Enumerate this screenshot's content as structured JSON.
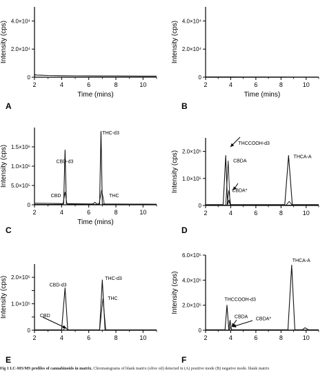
{
  "caption": {
    "label": "Fig 1",
    "bold": "LC-MS/MS profiles of cannabinoids in matrix.",
    "text": "Chromatograms of blank matrix (olive oil) detected in (A) positive mode (B) negative mode. blank matrix"
  },
  "chart_data": [
    {
      "type": "line",
      "panel_letter": "A",
      "xlabel": "Time (mins)",
      "ylabel": "Intensity (cps)",
      "xlim": [
        2,
        11
      ],
      "ylim": [
        0,
        50000
      ],
      "xticks": [
        2,
        4,
        6,
        8,
        10
      ],
      "yticks": [
        0,
        20000,
        40000
      ],
      "ytick_labels": [
        "0",
        "2.0×10⁴",
        "4.0×10⁴"
      ],
      "grid": false,
      "series": [
        {
          "values": [
            [
              2.0,
              0
            ],
            [
              2.02,
              2200
            ],
            [
              2.06,
              1600
            ],
            [
              2.2,
              1500
            ],
            [
              2.6,
              1350
            ],
            [
              3.0,
              1250
            ],
            [
              4.0,
              1100
            ],
            [
              5.0,
              1000
            ],
            [
              6.0,
              950
            ],
            [
              7.0,
              900
            ],
            [
              8.0,
              860
            ],
            [
              9.0,
              820
            ],
            [
              10.0,
              780
            ],
            [
              11.0,
              760
            ]
          ]
        }
      ],
      "annotations": []
    },
    {
      "type": "line",
      "panel_letter": "B",
      "xlabel": "Time (mins)",
      "ylabel": "Intensity (cps)",
      "xlim": [
        2,
        11
      ],
      "ylim": [
        0,
        50000
      ],
      "xticks": [
        2,
        4,
        6,
        8,
        10
      ],
      "yticks": [
        0,
        20000,
        40000
      ],
      "ytick_labels": [
        "0",
        "2.0×10⁴",
        "4.0×10⁴"
      ],
      "grid": false,
      "series": [
        {
          "values": [
            [
              2.0,
              0
            ],
            [
              2.05,
              250
            ],
            [
              3.0,
              200
            ],
            [
              4.0,
              180
            ],
            [
              5.0,
              160
            ],
            [
              6.0,
              150
            ],
            [
              7.0,
              140
            ],
            [
              8.0,
              130
            ],
            [
              9.0,
              120
            ],
            [
              10.0,
              110
            ],
            [
              11.0,
              100
            ]
          ]
        }
      ],
      "annotations": []
    },
    {
      "type": "line",
      "panel_letter": "C",
      "xlabel": "Time (mins)",
      "ylabel": "Intensity (cps)",
      "xlim": [
        2,
        11
      ],
      "ylim": [
        0,
        2000000
      ],
      "xticks": [
        2,
        4,
        6,
        8,
        10
      ],
      "yticks": [
        0,
        500000,
        1000000,
        1500000
      ],
      "ytick_labels": [
        "0",
        "5.0×10⁵",
        "1.0×10⁶",
        "1.5×10⁶"
      ],
      "grid": false,
      "series": [
        {
          "values": [
            [
              2.0,
              40000
            ],
            [
              3.0,
              35000
            ],
            [
              4.0,
              30000
            ],
            [
              4.15,
              30000
            ],
            [
              4.25,
              1420000
            ],
            [
              4.35,
              30000
            ],
            [
              5.0,
              25000
            ],
            [
              6.3,
              22000
            ],
            [
              6.45,
              60000
            ],
            [
              6.6,
              22000
            ],
            [
              6.8,
              22000
            ],
            [
              6.9,
              1900000
            ],
            [
              7.0,
              22000
            ],
            [
              8.0,
              20000
            ],
            [
              9.0,
              18000
            ],
            [
              10.0,
              17000
            ],
            [
              11.0,
              15000
            ]
          ]
        },
        {
          "values": [
            [
              2.0,
              10000
            ],
            [
              4.1,
              10000
            ],
            [
              4.25,
              330000
            ],
            [
              4.4,
              10000
            ],
            [
              6.75,
              10000
            ],
            [
              6.95,
              380000
            ],
            [
              7.15,
              10000
            ],
            [
              11.0,
              8000
            ]
          ]
        }
      ],
      "annotations": [
        {
          "text": "CBD-d3",
          "x": 3.6,
          "y": 1080000
        },
        {
          "text": "CBD",
          "x": 3.2,
          "y": 200000
        },
        {
          "text": "THC-d3",
          "x": 7.0,
          "y": 1820000
        },
        {
          "text": "THC",
          "x": 7.5,
          "y": 200000
        }
      ]
    },
    {
      "type": "line",
      "panel_letter": "D",
      "xlabel": "",
      "ylabel": "Intensity (cps)",
      "xlim": [
        2,
        11
      ],
      "ylim": [
        0,
        250000
      ],
      "xticks": [
        2,
        4,
        6,
        8,
        10
      ],
      "yticks": [
        0,
        100000,
        200000
      ],
      "ytick_labels": [
        "0",
        "1.0×10⁵",
        "2.0×10⁵"
      ],
      "grid": false,
      "series": [
        {
          "values": [
            [
              2.0,
              3000
            ],
            [
              3.4,
              3000
            ],
            [
              3.6,
              185000
            ],
            [
              3.75,
              3000
            ],
            [
              3.85,
              20000
            ],
            [
              3.95,
              3000
            ],
            [
              5.0,
              3000
            ],
            [
              8.3,
              3000
            ],
            [
              8.6,
              185000
            ],
            [
              8.9,
              3000
            ],
            [
              11.0,
              3000
            ]
          ]
        },
        {
          "values": [
            [
              2.0,
              1500
            ],
            [
              3.6,
              1500
            ],
            [
              3.8,
              165000
            ],
            [
              3.95,
              1500
            ],
            [
              11.0,
              1500
            ]
          ]
        },
        {
          "values": [
            [
              2.0,
              1000
            ],
            [
              3.7,
              1000
            ],
            [
              3.85,
              55000
            ],
            [
              4.0,
              1000
            ],
            [
              11.0,
              1000
            ]
          ]
        },
        {
          "values": [
            [
              2.0,
              800
            ],
            [
              8.4,
              800
            ],
            [
              8.65,
              15000
            ],
            [
              8.9,
              800
            ],
            [
              11.0,
              800
            ]
          ]
        }
      ],
      "annotations": [
        {
          "text": "THCCOOH-d3",
          "x": 4.6,
          "y": 225000
        },
        {
          "text": "CBDA",
          "x": 4.2,
          "y": 160000
        },
        {
          "text": "CBDA*",
          "x": 4.1,
          "y": 50000
        },
        {
          "text": "THCA-A",
          "x": 9.0,
          "y": 175000
        }
      ]
    },
    {
      "type": "line",
      "panel_letter": "E",
      "xlabel": "",
      "ylabel": "Intensity (cps)",
      "xlim": [
        2,
        11
      ],
      "ylim": [
        0,
        250000
      ],
      "xticks": [
        2,
        4,
        6,
        8,
        10
      ],
      "yticks": [
        0,
        50000,
        100000,
        150000,
        200000
      ],
      "ytick_labels": [
        "0",
        "",
        "1.0×10⁵",
        "",
        "2.0×10⁵"
      ],
      "grid": false,
      "series": [
        {
          "values": [
            [
              2.0,
              1500
            ],
            [
              4.0,
              1500
            ],
            [
              4.25,
              160000
            ],
            [
              4.45,
              1500
            ],
            [
              6.8,
              1500
            ],
            [
              7.0,
              190000
            ],
            [
              7.2,
              1500
            ],
            [
              11.0,
              1500
            ]
          ]
        },
        {
          "values": [
            [
              2.0,
              700
            ],
            [
              4.1,
              700
            ],
            [
              4.3,
              10000
            ],
            [
              4.45,
              700
            ],
            [
              6.8,
              700
            ],
            [
              7.05,
              120000
            ],
            [
              7.25,
              700
            ],
            [
              11.0,
              700
            ]
          ]
        }
      ],
      "annotations": [
        {
          "text": "CBD-d3",
          "x": 3.1,
          "y": 165000
        },
        {
          "text": "CBD",
          "x": 2.4,
          "y": 50000
        },
        {
          "text": "THC-d3",
          "x": 7.2,
          "y": 190000
        },
        {
          "text": "THC",
          "x": 7.4,
          "y": 115000
        }
      ]
    },
    {
      "type": "line",
      "panel_letter": "F",
      "xlabel": "",
      "ylabel": "Intensity (cps)",
      "xlim": [
        2,
        11
      ],
      "ylim": [
        0,
        600000
      ],
      "xticks": [
        2,
        4,
        6,
        8,
        10
      ],
      "yticks": [
        0,
        200000,
        400000,
        600000
      ],
      "ytick_labels": [
        "0",
        "2.0×10⁵",
        "4.0×10⁵",
        "6.0×10⁵"
      ],
      "grid": false,
      "series": [
        {
          "values": [
            [
              2.0,
              4000
            ],
            [
              3.55,
              4000
            ],
            [
              3.7,
              200000
            ],
            [
              3.85,
              4000
            ],
            [
              3.95,
              80000
            ],
            [
              4.05,
              4000
            ],
            [
              5.5,
              4000
            ],
            [
              8.55,
              4000
            ],
            [
              8.85,
              520000
            ],
            [
              9.1,
              4000
            ],
            [
              9.7,
              4000
            ],
            [
              9.9,
              20000
            ],
            [
              10.2,
              4000
            ],
            [
              11.0,
              4000
            ]
          ]
        },
        {
          "values": [
            [
              2.0,
              2000
            ],
            [
              3.9,
              2000
            ],
            [
              4.0,
              30000
            ],
            [
              4.1,
              2000
            ],
            [
              11.0,
              2000
            ]
          ]
        }
      ],
      "annotations": [
        {
          "text": "THCCOOH-d3",
          "x": 3.5,
          "y": 235000
        },
        {
          "text": "CBDA",
          "x": 4.3,
          "y": 95000
        },
        {
          "text": "CBDA*",
          "x": 6.0,
          "y": 80000
        },
        {
          "text": "THCA-A",
          "x": 8.9,
          "y": 545000
        }
      ]
    }
  ]
}
